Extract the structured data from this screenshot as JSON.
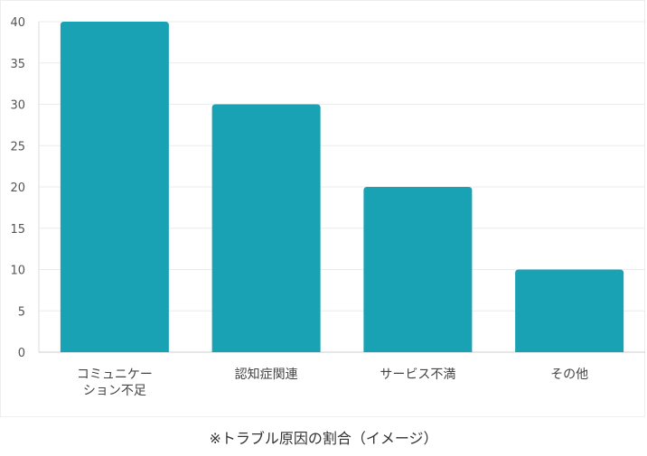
{
  "chart_data": {
    "type": "bar",
    "categories": [
      [
        "コミュニケー",
        "ション不足"
      ],
      [
        "認知症関連"
      ],
      [
        "サービス不満"
      ],
      [
        "その他"
      ]
    ],
    "values": [
      40,
      30,
      20,
      10
    ],
    "ylim": [
      0,
      40
    ],
    "yticks": [
      0,
      5,
      10,
      15,
      20,
      25,
      30,
      35,
      40
    ],
    "grid": true,
    "bar_color": "#18a2b4",
    "title": "",
    "xlabel": "",
    "ylabel": ""
  },
  "caption": "※トラブル原因の割合（イメージ）"
}
